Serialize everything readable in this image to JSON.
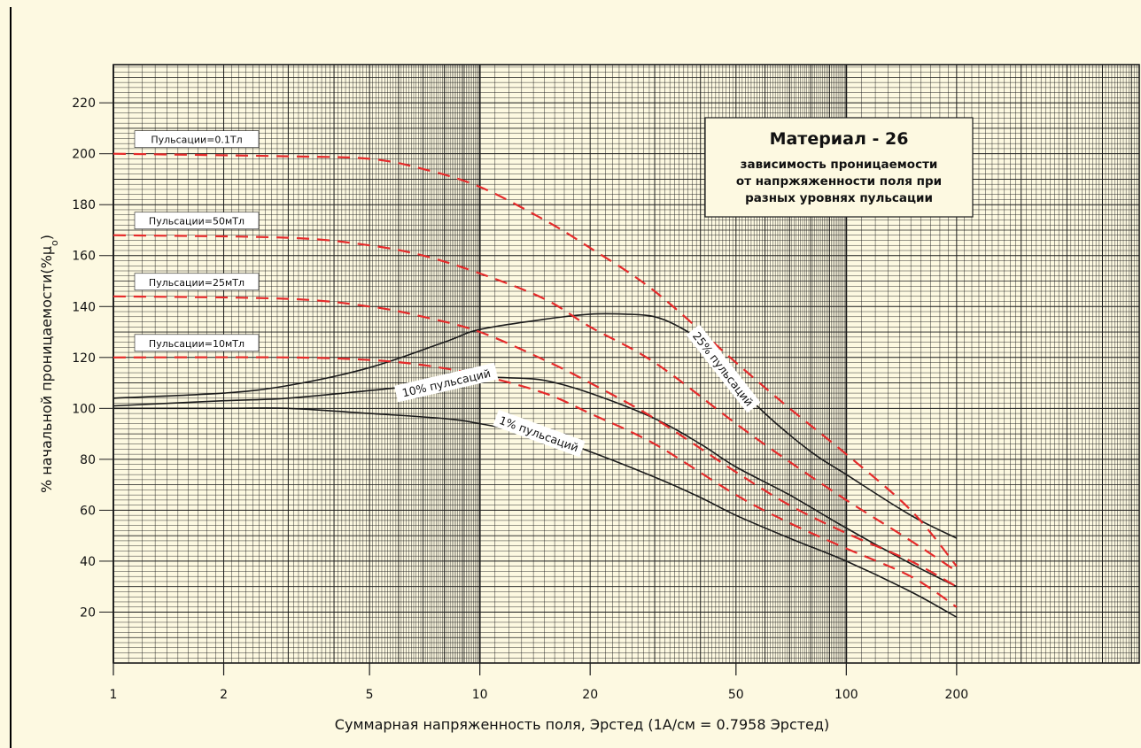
{
  "chart_data": {
    "type": "line",
    "xscale": "log",
    "xlim": [
      1,
      630
    ],
    "ylim": [
      0,
      235
    ],
    "xlabel": "Суммарная напряженность поля, Эрстед (1А/см = 0.7958 Эрстед)",
    "ylabel_main": "% начальной проницаемости(%μ",
    "ylabel_sub": "o",
    "ylabel_tail": ")",
    "x_ticks": [
      {
        "value": 1,
        "label": "1"
      },
      {
        "value": 2,
        "label": "2"
      },
      {
        "value": 5,
        "label": "5"
      },
      {
        "value": 10,
        "label": "10"
      },
      {
        "value": 20,
        "label": "20"
      },
      {
        "value": 50,
        "label": "50"
      },
      {
        "value": 100,
        "label": "100"
      },
      {
        "value": 200,
        "label": "200"
      }
    ],
    "y_ticks": [
      {
        "value": 20,
        "label": "20"
      },
      {
        "value": 40,
        "label": "40"
      },
      {
        "value": 60,
        "label": "60"
      },
      {
        "value": 80,
        "label": "80"
      },
      {
        "value": 100,
        "label": "100"
      },
      {
        "value": 120,
        "label": "120"
      },
      {
        "value": 140,
        "label": "140"
      },
      {
        "value": 160,
        "label": "160"
      },
      {
        "value": 180,
        "label": "180"
      },
      {
        "value": 200,
        "label": "200"
      },
      {
        "value": 220,
        "label": "220"
      }
    ],
    "grid": true,
    "infobox": {
      "title": "Материал - 26",
      "lines": [
        "зависимость проницаемости",
        "от напржяженности поля при",
        "разных уровнях пульсации"
      ],
      "placement": "top-right"
    },
    "series": [
      {
        "style": "solid",
        "color": "#1a1a1a",
        "label": "25% пульсаций",
        "points": [
          [
            1,
            104
          ],
          [
            2,
            106
          ],
          [
            3,
            109
          ],
          [
            5,
            116
          ],
          [
            8,
            126
          ],
          [
            10,
            131
          ],
          [
            15,
            135
          ],
          [
            20,
            137
          ],
          [
            25,
            137
          ],
          [
            30,
            136
          ],
          [
            35,
            132
          ],
          [
            40,
            126
          ],
          [
            50,
            110
          ],
          [
            60,
            98
          ],
          [
            80,
            83
          ],
          [
            100,
            74
          ],
          [
            150,
            58
          ],
          [
            200,
            49
          ]
        ]
      },
      {
        "style": "solid",
        "color": "#1a1a1a",
        "label": "10% пульсаций",
        "points": [
          [
            1,
            101
          ],
          [
            2,
            103
          ],
          [
            3,
            104
          ],
          [
            5,
            107
          ],
          [
            8,
            110
          ],
          [
            10,
            112
          ],
          [
            12,
            112
          ],
          [
            15,
            111
          ],
          [
            20,
            106
          ],
          [
            30,
            96
          ],
          [
            40,
            86
          ],
          [
            50,
            77
          ],
          [
            70,
            66
          ],
          [
            100,
            53
          ],
          [
            150,
            39
          ],
          [
            200,
            30
          ]
        ]
      },
      {
        "style": "solid",
        "color": "#1a1a1a",
        "label": "1% пульсаций",
        "points": [
          [
            1,
            100
          ],
          [
            2,
            100
          ],
          [
            3,
            100
          ],
          [
            5,
            98
          ],
          [
            8,
            96
          ],
          [
            10,
            94
          ],
          [
            15,
            89
          ],
          [
            20,
            83
          ],
          [
            30,
            73
          ],
          [
            40,
            65
          ],
          [
            50,
            58
          ],
          [
            70,
            49
          ],
          [
            100,
            40
          ],
          [
            150,
            28
          ],
          [
            200,
            18
          ]
        ]
      },
      {
        "style": "dashed",
        "color": "#e52a2a",
        "label": "Пульсации=0.1Тл",
        "points": [
          [
            1,
            200
          ],
          [
            3,
            199
          ],
          [
            5,
            198
          ],
          [
            7,
            194
          ],
          [
            10,
            187
          ],
          [
            15,
            174
          ],
          [
            20,
            163
          ],
          [
            30,
            146
          ],
          [
            50,
            118
          ],
          [
            70,
            100
          ],
          [
            100,
            82
          ],
          [
            150,
            60
          ],
          [
            200,
            38
          ]
        ]
      },
      {
        "style": "dashed",
        "color": "#e52a2a",
        "label": "Пульсации=50мТл",
        "points": [
          [
            1,
            168
          ],
          [
            3,
            167
          ],
          [
            5,
            164
          ],
          [
            7,
            160
          ],
          [
            10,
            153
          ],
          [
            15,
            143
          ],
          [
            20,
            132
          ],
          [
            30,
            118
          ],
          [
            50,
            94
          ],
          [
            70,
            79
          ],
          [
            100,
            64
          ],
          [
            150,
            48
          ],
          [
            200,
            36
          ]
        ]
      },
      {
        "style": "dashed",
        "color": "#e52a2a",
        "label": "Пульсации=25мТл",
        "points": [
          [
            1,
            144
          ],
          [
            3,
            143
          ],
          [
            5,
            140
          ],
          [
            7,
            136
          ],
          [
            10,
            130
          ],
          [
            15,
            119
          ],
          [
            20,
            110
          ],
          [
            30,
            96
          ],
          [
            50,
            75
          ],
          [
            70,
            62
          ],
          [
            100,
            51
          ],
          [
            150,
            40
          ],
          [
            200,
            30
          ]
        ]
      },
      {
        "style": "dashed",
        "color": "#e52a2a",
        "label": "Пульсации=10мТл",
        "points": [
          [
            1,
            120
          ],
          [
            3,
            120
          ],
          [
            5,
            119
          ],
          [
            7,
            117
          ],
          [
            10,
            113
          ],
          [
            15,
            106
          ],
          [
            20,
            98
          ],
          [
            30,
            86
          ],
          [
            50,
            66
          ],
          [
            70,
            55
          ],
          [
            100,
            45
          ],
          [
            150,
            34
          ],
          [
            200,
            22
          ]
        ]
      }
    ]
  }
}
